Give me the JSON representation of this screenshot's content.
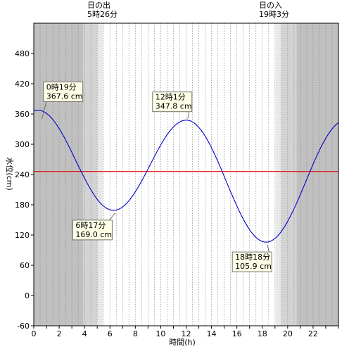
{
  "chart_data": {
    "type": "line",
    "xlabel": "時間(h)",
    "ylabel": "水位(cm)",
    "xlim": [
      0,
      24
    ],
    "ylim": [
      -60,
      540
    ],
    "x_ticks": [
      0,
      2,
      4,
      6,
      8,
      10,
      12,
      14,
      16,
      18,
      20,
      22
    ],
    "y_ticks": [
      -60,
      0,
      60,
      120,
      180,
      240,
      300,
      360,
      420,
      480
    ],
    "grid": "vertical dotted every 0.5h",
    "mean_level": 246,
    "mean_line_color": "#e00000",
    "series_color": "#0000cc",
    "sunrise": {
      "label": "日の出",
      "time_label": "5時26分",
      "hour": 5.433
    },
    "sunset": {
      "label": "日の入",
      "time_label": "19時3分",
      "hour": 19.05
    },
    "twilight": [
      {
        "from": 0,
        "to": 3.9,
        "shade": "#c0c0c0"
      },
      {
        "from": 3.9,
        "to": 5.0,
        "shade": "#d3d3d3"
      },
      {
        "from": 5.0,
        "to": 5.433,
        "shade": "#e8e8e8"
      },
      {
        "from": 19.05,
        "to": 19.5,
        "shade": "#e8e8e8"
      },
      {
        "from": 19.5,
        "to": 20.7,
        "shade": "#d3d3d3"
      },
      {
        "from": 20.7,
        "to": 24,
        "shade": "#c0c0c0"
      }
    ],
    "extrema": [
      {
        "kind": "high",
        "hour": 0.317,
        "value": 367.6,
        "time_label": "0時19分",
        "value_label": "367.6 cm"
      },
      {
        "kind": "low",
        "hour": 6.283,
        "value": 169.0,
        "time_label": "6時17分",
        "value_label": "169.0 cm"
      },
      {
        "kind": "high",
        "hour": 12.017,
        "value": 347.8,
        "time_label": "12時1分",
        "value_label": "347.8 cm"
      },
      {
        "kind": "low",
        "hour": 18.3,
        "value": 105.9,
        "time_label": "18時18分",
        "value_label": "105.9 cm"
      }
    ],
    "end_value": 333
  }
}
